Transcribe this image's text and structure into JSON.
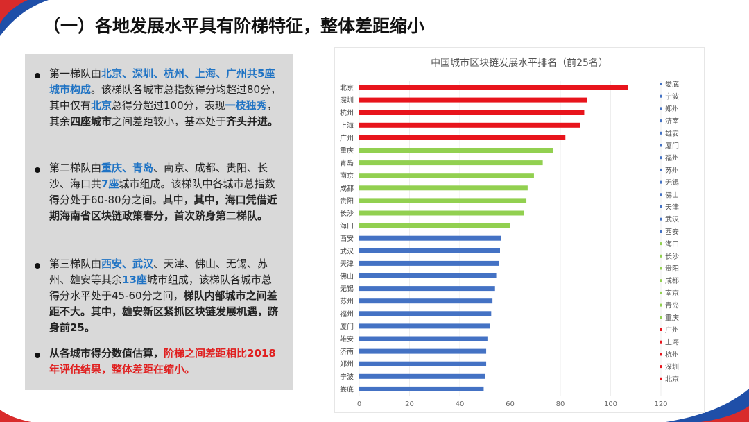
{
  "page": {
    "title": "（一）各地发展水平具有阶梯特征，整体差距缩小"
  },
  "bullets": [
    {
      "parts": [
        {
          "t": "第一梯队由",
          "s": "n"
        },
        {
          "t": "北京、深圳、杭州、上海、广州共5座城市构成",
          "s": "blue"
        },
        {
          "t": "。该梯队各城市总指数得分均超过80分，其中仅有",
          "s": "n"
        },
        {
          "t": "北京",
          "s": "blue"
        },
        {
          "t": "总得分超过100分，表现",
          "s": "n"
        },
        {
          "t": "一枝独秀",
          "s": "blue"
        },
        {
          "t": "，其余",
          "s": "n"
        },
        {
          "t": "四座城市",
          "s": "b"
        },
        {
          "t": "之间差距较小，基本处于",
          "s": "n"
        },
        {
          "t": "齐头并进。",
          "s": "b"
        }
      ]
    },
    {
      "parts": [
        {
          "t": "第二梯队由",
          "s": "n"
        },
        {
          "t": "重庆、青岛",
          "s": "blue"
        },
        {
          "t": "、南京、成都、贵阳、长沙、海口共",
          "s": "n"
        },
        {
          "t": "7座",
          "s": "blue"
        },
        {
          "t": "城市组成。该梯队中各城市总指数得分处于60-80分之间。其中，",
          "s": "n"
        },
        {
          "t": "其中，海口凭借近期海南省区块链政策春分，首次跻身第二梯队。",
          "s": "b"
        }
      ]
    },
    {
      "parts": [
        {
          "t": "第三梯队由",
          "s": "n"
        },
        {
          "t": "西安、武汉",
          "s": "blue"
        },
        {
          "t": "、天津、佛山、无锡、苏州、雄安等其余",
          "s": "n"
        },
        {
          "t": "13座",
          "s": "blue"
        },
        {
          "t": "城市组成，该梯队各城市总得分水平处于45-60分之间，",
          "s": "n"
        },
        {
          "t": "梯队内部城市之间差距不大。其中，雄安新区紧抓区块链发展机遇，跻身前25。",
          "s": "b"
        }
      ]
    },
    {
      "parts": [
        {
          "t": "从各城市得分数值估算，",
          "s": "b"
        },
        {
          "t": "阶梯之间差距相比2018年评估结果，整体差距在缩小。",
          "s": "red"
        }
      ]
    }
  ],
  "colors": {
    "tier1": "#e8141c",
    "tier2": "#92d050",
    "tier3": "#4472c4"
  },
  "chart_data": {
    "type": "bar",
    "orientation": "horizontal",
    "title": "中国城市区块链发展水平排名（前25名）",
    "xlabel": "",
    "ylabel": "",
    "xlim": [
      0,
      120
    ],
    "xticks": [
      0,
      20,
      40,
      60,
      80,
      100,
      120
    ],
    "categories": [
      "北京",
      "深圳",
      "杭州",
      "上海",
      "广州",
      "重庆",
      "青岛",
      "南京",
      "成都",
      "贵阳",
      "长沙",
      "海口",
      "西安",
      "武汉",
      "天津",
      "佛山",
      "无锡",
      "苏州",
      "福州",
      "厦门",
      "雄安",
      "济南",
      "郑州",
      "宁波",
      "娄底"
    ],
    "values": [
      107,
      90.5,
      89.5,
      88,
      82,
      77,
      73,
      69.5,
      67,
      66.5,
      65.5,
      60,
      56.5,
      56,
      55.5,
      54.5,
      54,
      53,
      52.5,
      52,
      51,
      50.5,
      50.5,
      50,
      49.5
    ],
    "tiers": [
      1,
      1,
      1,
      1,
      1,
      2,
      2,
      2,
      2,
      2,
      2,
      2,
      3,
      3,
      3,
      3,
      3,
      3,
      3,
      3,
      3,
      3,
      3,
      3,
      3
    ],
    "legend": {
      "position": "right",
      "entries": [
        "娄底",
        "宁波",
        "郑州",
        "济南",
        "雄安",
        "厦门",
        "福州",
        "苏州",
        "无锡",
        "佛山",
        "天津",
        "武汉",
        "西安",
        "海口",
        "长沙",
        "贵阳",
        "成都",
        "南京",
        "青岛",
        "重庆",
        "广州",
        "上海",
        "杭州",
        "深圳",
        "北京"
      ]
    }
  }
}
